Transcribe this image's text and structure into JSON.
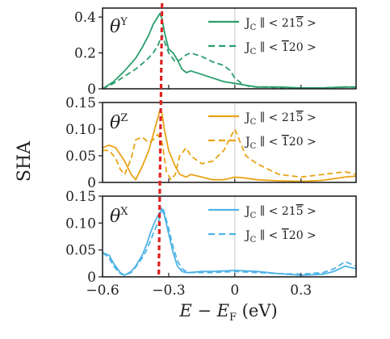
{
  "chart_data": [
    {
      "type": "line",
      "panel_label": "θ",
      "panel_label_sup": "Y",
      "ylabel": "",
      "xlabel": "",
      "xlim": [
        -0.6,
        0.55
      ],
      "ylim": [
        0,
        0.45
      ],
      "y_ticks": [
        "0",
        "0.2",
        "0.4"
      ],
      "y_tick_values": [
        0,
        0.2,
        0.4
      ],
      "colors": {
        "series": "#2a9e6c"
      },
      "series": [
        {
          "name": "J_C ∥ < 2 1 -5 >",
          "style": "solid",
          "x": [
            -0.6,
            -0.55,
            -0.5,
            -0.45,
            -0.42,
            -0.39,
            -0.37,
            -0.35,
            -0.34,
            -0.33,
            -0.32,
            -0.3,
            -0.28,
            -0.26,
            -0.24,
            -0.22,
            -0.2,
            -0.15,
            -0.1,
            -0.05,
            0,
            0.05,
            0.1,
            0.15,
            0.2,
            0.3,
            0.4,
            0.5,
            0.55
          ],
          "y": [
            0.0,
            0.04,
            0.1,
            0.17,
            0.23,
            0.3,
            0.36,
            0.4,
            0.42,
            0.39,
            0.32,
            0.22,
            0.2,
            0.16,
            0.11,
            0.09,
            0.1,
            0.08,
            0.06,
            0.04,
            0.03,
            0.02,
            0.01,
            0.01,
            0.01,
            0.005,
            0.005,
            0.01,
            0.01
          ]
        },
        {
          "name": "J_C ∥ < -1 2 0 >",
          "style": "dashed",
          "x": [
            -0.6,
            -0.55,
            -0.5,
            -0.45,
            -0.4,
            -0.37,
            -0.35,
            -0.33,
            -0.3,
            -0.27,
            -0.25,
            -0.22,
            -0.2,
            -0.15,
            -0.1,
            -0.05,
            -0.02,
            0,
            0.03,
            0.06,
            0.1,
            0.15,
            0.2,
            0.3,
            0.4,
            0.5,
            0.55
          ],
          "y": [
            0.0,
            0.03,
            0.07,
            0.11,
            0.16,
            0.2,
            0.24,
            0.3,
            0.2,
            0.15,
            0.16,
            0.19,
            0.2,
            0.18,
            0.15,
            0.13,
            0.1,
            0.06,
            0.03,
            0.015,
            0.01,
            0.01,
            0.005,
            0.005,
            0.005,
            0.01,
            0.01
          ]
        }
      ]
    },
    {
      "type": "line",
      "panel_label": "θ",
      "panel_label_sup": "Z",
      "ylabel": "",
      "xlabel": "",
      "xlim": [
        -0.6,
        0.55
      ],
      "ylim": [
        0,
        0.15
      ],
      "y_ticks": [
        "0",
        "0.05",
        "0.10",
        "0.15"
      ],
      "y_tick_values": [
        0,
        0.05,
        0.1,
        0.15
      ],
      "colors": {
        "series": "#e8a317"
      },
      "series": [
        {
          "name": "J_C ∥ < 2 1 -5 >",
          "style": "solid",
          "x": [
            -0.6,
            -0.57,
            -0.54,
            -0.5,
            -0.47,
            -0.45,
            -0.42,
            -0.39,
            -0.37,
            -0.35,
            -0.34,
            -0.33,
            -0.32,
            -0.3,
            -0.27,
            -0.25,
            -0.22,
            -0.2,
            -0.15,
            -0.1,
            -0.05,
            0,
            0.05,
            0.1,
            0.2,
            0.3,
            0.4,
            0.5,
            0.55
          ],
          "y": [
            0.065,
            0.07,
            0.065,
            0.04,
            0.015,
            0.005,
            0.03,
            0.06,
            0.09,
            0.12,
            0.135,
            0.13,
            0.1,
            0.06,
            0.03,
            0.015,
            0.01,
            0.015,
            0.01,
            0.005,
            0.005,
            0.01,
            0.008,
            0.005,
            0.003,
            0.002,
            0.004,
            0.01,
            0.012
          ]
        },
        {
          "name": "J_C ∥ < -1 2 0 >",
          "style": "dashed",
          "x": [
            -0.6,
            -0.57,
            -0.54,
            -0.52,
            -0.5,
            -0.47,
            -0.45,
            -0.42,
            -0.39,
            -0.37,
            -0.35,
            -0.33,
            -0.31,
            -0.29,
            -0.27,
            -0.25,
            -0.22,
            -0.2,
            -0.15,
            -0.1,
            -0.05,
            -0.02,
            0,
            0.02,
            0.05,
            0.1,
            0.15,
            0.2,
            0.3,
            0.4,
            0.5,
            0.55
          ],
          "y": [
            0.06,
            0.06,
            0.045,
            0.025,
            0.015,
            0.045,
            0.08,
            0.085,
            0.075,
            0.08,
            0.09,
            0.075,
            0.02,
            0.005,
            0.015,
            0.05,
            0.065,
            0.05,
            0.035,
            0.04,
            0.06,
            0.085,
            0.1,
            0.08,
            0.05,
            0.035,
            0.025,
            0.015,
            0.01,
            0.015,
            0.02,
            0.015
          ]
        }
      ]
    },
    {
      "type": "line",
      "panel_label": "θ",
      "panel_label_sup": "X",
      "ylabel": "SHA",
      "xlabel": "",
      "xlim": [
        -0.6,
        0.55
      ],
      "ylim": [
        0,
        0.15
      ],
      "y_ticks": [
        "0",
        "0.05",
        "0.10",
        "0.15"
      ],
      "y_tick_values": [
        0,
        0.05,
        0.1,
        0.15
      ],
      "x_ticks": [
        "−0.6",
        "−0.3",
        "0",
        "0.3"
      ],
      "x_tick_values": [
        -0.6,
        -0.3,
        0,
        0.3
      ],
      "colors": {
        "series": "#4db3e6"
      },
      "series": [
        {
          "name": "J_C ∥ < 2 1 -5 >",
          "style": "solid",
          "x": [
            -0.6,
            -0.57,
            -0.55,
            -0.52,
            -0.5,
            -0.47,
            -0.45,
            -0.42,
            -0.4,
            -0.38,
            -0.36,
            -0.34,
            -0.33,
            -0.32,
            -0.3,
            -0.28,
            -0.26,
            -0.24,
            -0.22,
            -0.2,
            -0.15,
            -0.1,
            0,
            0.1,
            0.2,
            0.3,
            0.4,
            0.45,
            0.5,
            0.55
          ],
          "y": [
            0.045,
            0.04,
            0.025,
            0.008,
            0.003,
            0.01,
            0.02,
            0.04,
            0.06,
            0.085,
            0.105,
            0.12,
            0.125,
            0.115,
            0.08,
            0.045,
            0.02,
            0.01,
            0.008,
            0.008,
            0.01,
            0.01,
            0.012,
            0.01,
            0.006,
            0.003,
            0.005,
            0.01,
            0.02,
            0.015
          ]
        },
        {
          "name": "J_C ∥ < -1 2 0 >",
          "style": "dashed",
          "x": [
            -0.6,
            -0.57,
            -0.55,
            -0.52,
            -0.5,
            -0.47,
            -0.45,
            -0.42,
            -0.4,
            -0.38,
            -0.36,
            -0.34,
            -0.33,
            -0.32,
            -0.3,
            -0.28,
            -0.26,
            -0.24,
            -0.22,
            -0.2,
            -0.15,
            -0.1,
            0,
            0.1,
            0.2,
            0.3,
            0.4,
            0.45,
            0.5,
            0.55
          ],
          "y": [
            0.045,
            0.035,
            0.02,
            0.006,
            0.003,
            0.008,
            0.018,
            0.035,
            0.05,
            0.07,
            0.09,
            0.11,
            0.13,
            0.12,
            0.09,
            0.055,
            0.03,
            0.015,
            0.01,
            0.008,
            0.008,
            0.008,
            0.01,
            0.008,
            0.006,
            0.005,
            0.008,
            0.015,
            0.028,
            0.02
          ]
        }
      ]
    }
  ],
  "axes": {
    "ylabel": "SHA",
    "xlabel_main": "E − E",
    "xlabel_sub": "F",
    "xlabel_unit": " (eV)"
  },
  "legend": {
    "j_main": "J",
    "j_sub": "C",
    "parallel": " ∥ < ",
    "close": " >",
    "entry1_digits": [
      "2",
      "1"
    ],
    "entry1_bar_digit": "5",
    "entry2_bar_digit": "1",
    "entry2_digits": [
      "2",
      "0"
    ]
  },
  "reference": {
    "zero_line_x": 0,
    "marker_x_top": -0.33,
    "marker_x_bottom": -0.345,
    "colors": {
      "zero_line": "#c8c8c8",
      "marker": "#e02020"
    }
  }
}
